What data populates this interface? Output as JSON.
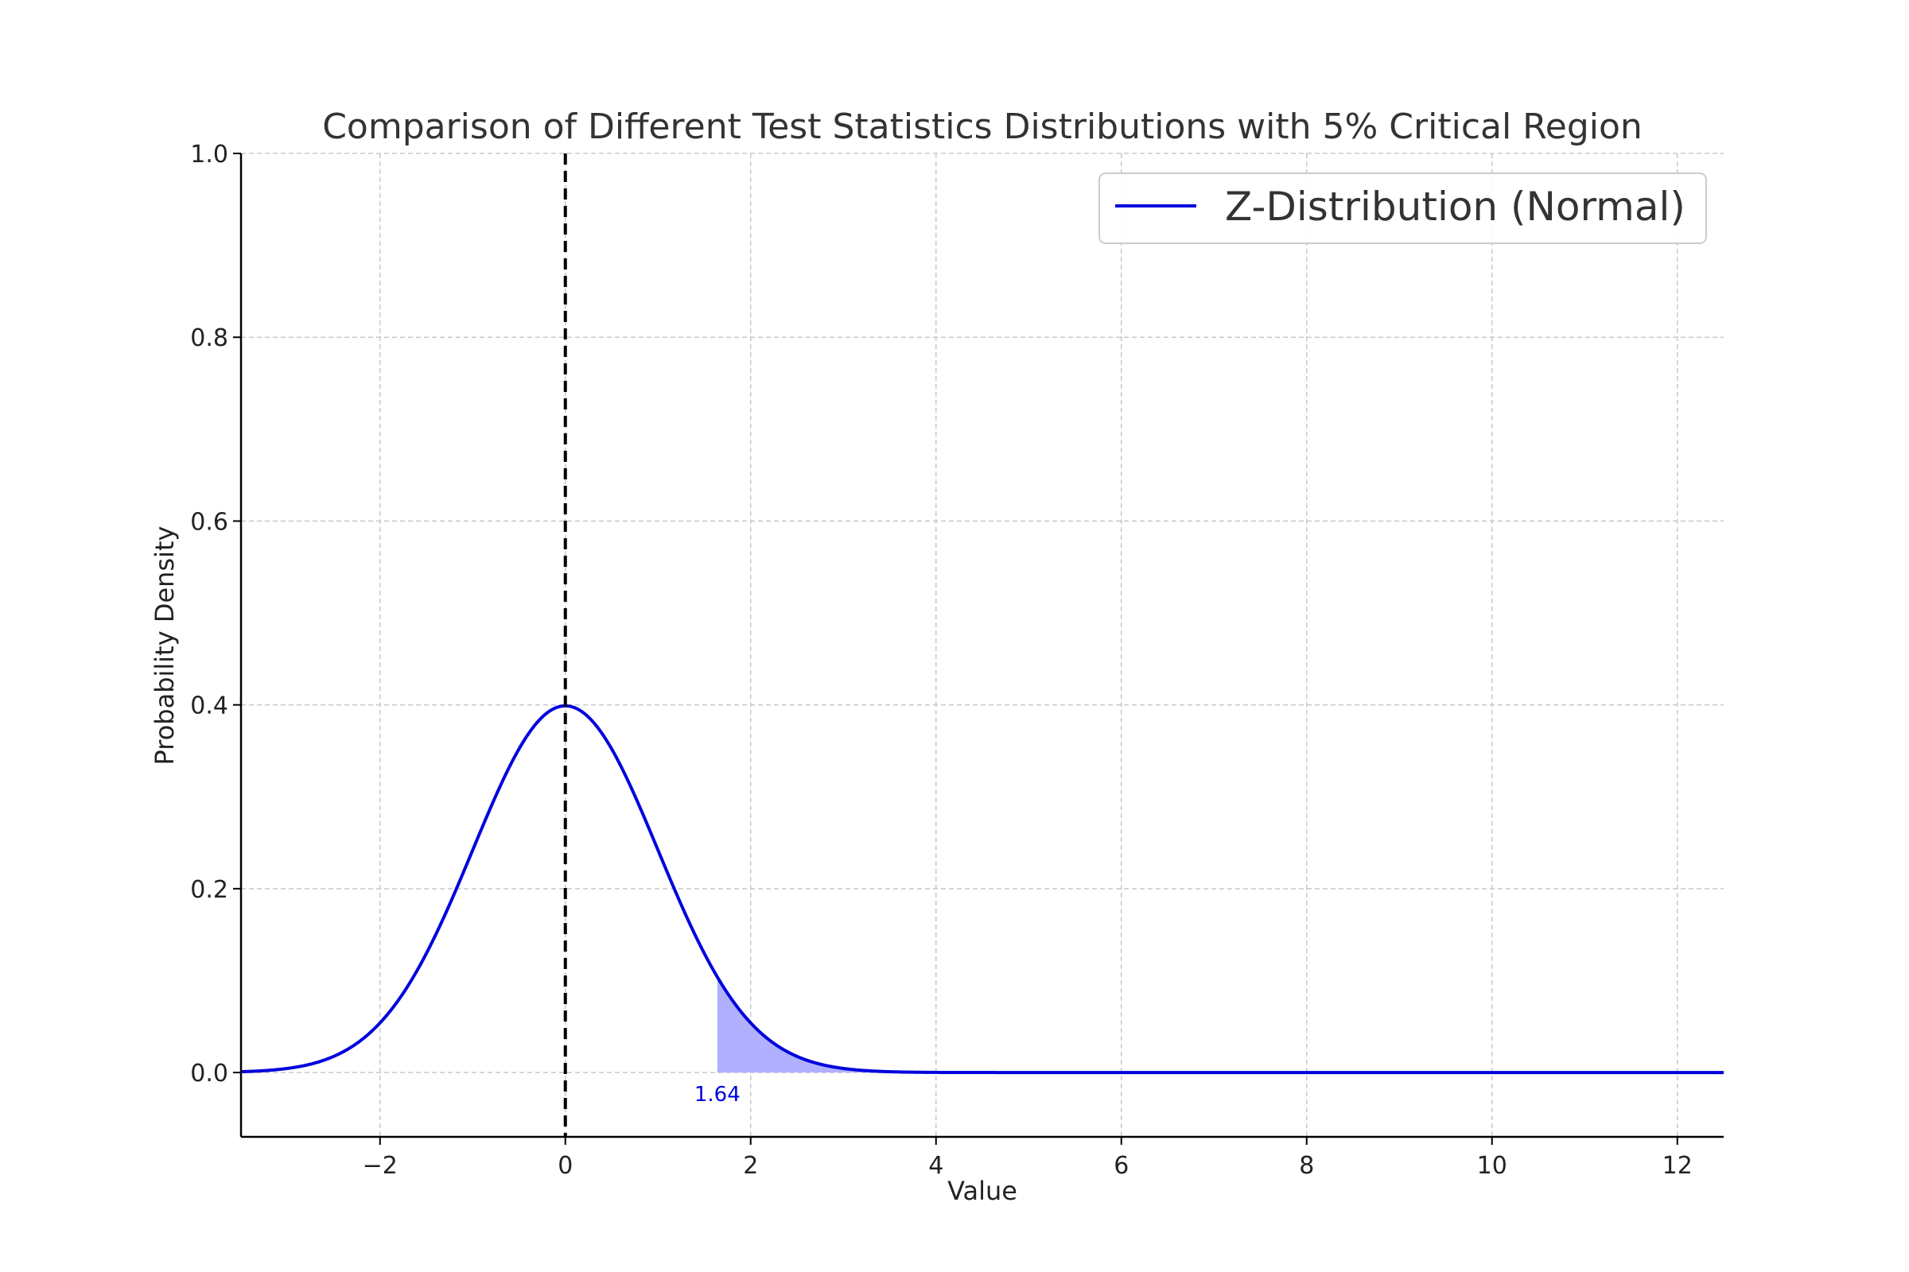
{
  "chart_data": {
    "type": "line",
    "title": "Comparison of Different Test Statistics Distributions with 5% Critical Region",
    "xlabel": "Value",
    "ylabel": "Probability Density",
    "xlim": [
      -3.5,
      12.5
    ],
    "ylim": [
      -0.07,
      1.0
    ],
    "x_ticks": [
      -2,
      0,
      2,
      4,
      6,
      8,
      10,
      12
    ],
    "x_tick_labels": [
      "−2",
      "0",
      "2",
      "4",
      "6",
      "8",
      "10",
      "12"
    ],
    "y_ticks": [
      0.0,
      0.2,
      0.4,
      0.6,
      0.8,
      1.0
    ],
    "y_tick_labels": [
      "0.0",
      "0.2",
      "0.4",
      "0.6",
      "0.8",
      "1.0"
    ],
    "grid": true,
    "legend_position": "top-right",
    "series": [
      {
        "name": "Z-Distribution (Normal)",
        "color": "#0000dd",
        "distribution": "standard normal pdf",
        "mean": 0,
        "sd": 1,
        "x_range": [
          -3.5,
          12.5
        ],
        "peak_value": 0.4
      }
    ],
    "critical_region": {
      "start": 1.64,
      "end": 12.5,
      "alpha": "5%",
      "fill_color": "#b0b0ff",
      "label": "1.64",
      "label_color": "#0000dd"
    },
    "reference_line": {
      "x": 0,
      "style": "dashed",
      "color": "#000000"
    }
  }
}
